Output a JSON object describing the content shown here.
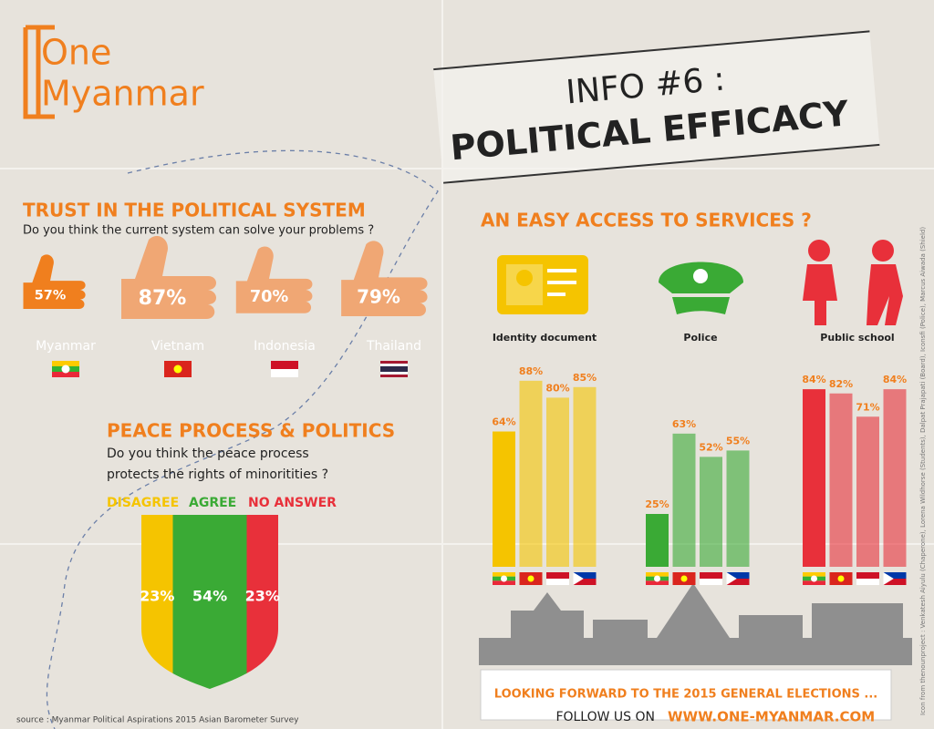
{
  "logo": {
    "line1": "One",
    "line2": "Myanmar"
  },
  "header": {
    "info": "INFO #6 :",
    "title": "POLITICAL EFFICACY"
  },
  "chart_data": [
    {
      "type": "pictogram",
      "title": "TRUST IN THE POLITICAL SYSTEM",
      "subtitle": "Do you think the current system can solve your problems ?",
      "categories": [
        "Myanmar",
        "Vietnam",
        "Indonesia",
        "Thailand"
      ],
      "values": [
        57,
        87,
        70,
        79
      ],
      "value_labels": [
        "57%",
        "87%",
        "70%",
        "79%"
      ],
      "colors": [
        "#f07f1e",
        "#f0a774",
        "#f0a774",
        "#f0a774"
      ]
    },
    {
      "type": "shield",
      "title": "PEACE PROCESS & POLITICS",
      "subtitle": [
        "Do you think the peace process",
        "protects the rights of minoritities ?"
      ],
      "series": [
        {
          "name": "DISAGREE",
          "color": "#f5c400",
          "values": [
            23
          ],
          "value_labels": [
            "23%"
          ]
        },
        {
          "name": "AGREE",
          "color": "#3aaa35",
          "values": [
            54
          ],
          "value_labels": [
            "54%"
          ]
        },
        {
          "name": "NO ANSWER",
          "color": "#e8303a",
          "values": [
            23
          ],
          "value_labels": [
            "23%"
          ]
        }
      ]
    },
    {
      "type": "bar",
      "title": "AN EASY ACCESS TO SERVICES ?",
      "groups": [
        {
          "name": "Identity document",
          "color": "#f5c400",
          "values": [
            64,
            88,
            80,
            85
          ],
          "value_labels": [
            "64%",
            "88%",
            "80%",
            "85%"
          ]
        },
        {
          "name": "Police",
          "color": "#3aaa35",
          "values": [
            25,
            63,
            52,
            55
          ],
          "value_labels": [
            "25%",
            "63%",
            "52%",
            "55%"
          ]
        },
        {
          "name": "Public school",
          "color": "#e8303a",
          "values": [
            84,
            82,
            71,
            84
          ],
          "value_labels": [
            "84%",
            "82%",
            "71%",
            "84%"
          ]
        }
      ]
    }
  ],
  "footer": {
    "line1": "LOOKING FORWARD TO THE 2015 GENERAL ELECTIONS ...",
    "follow": "FOLLOW US ON",
    "url": "WWW.ONE-MYANMAR.COM"
  },
  "source": "source : Myanmar Political Aspirations 2015 Asian Barometer Survey",
  "credits": "Icon from thenounproject : Venkatesh Aiyulu (Chaperone), Lorena Wildhorse (Students), Dalpat Prajapati (Board), Iconsfi (Police), Marcus Aiwada (Shield)"
}
